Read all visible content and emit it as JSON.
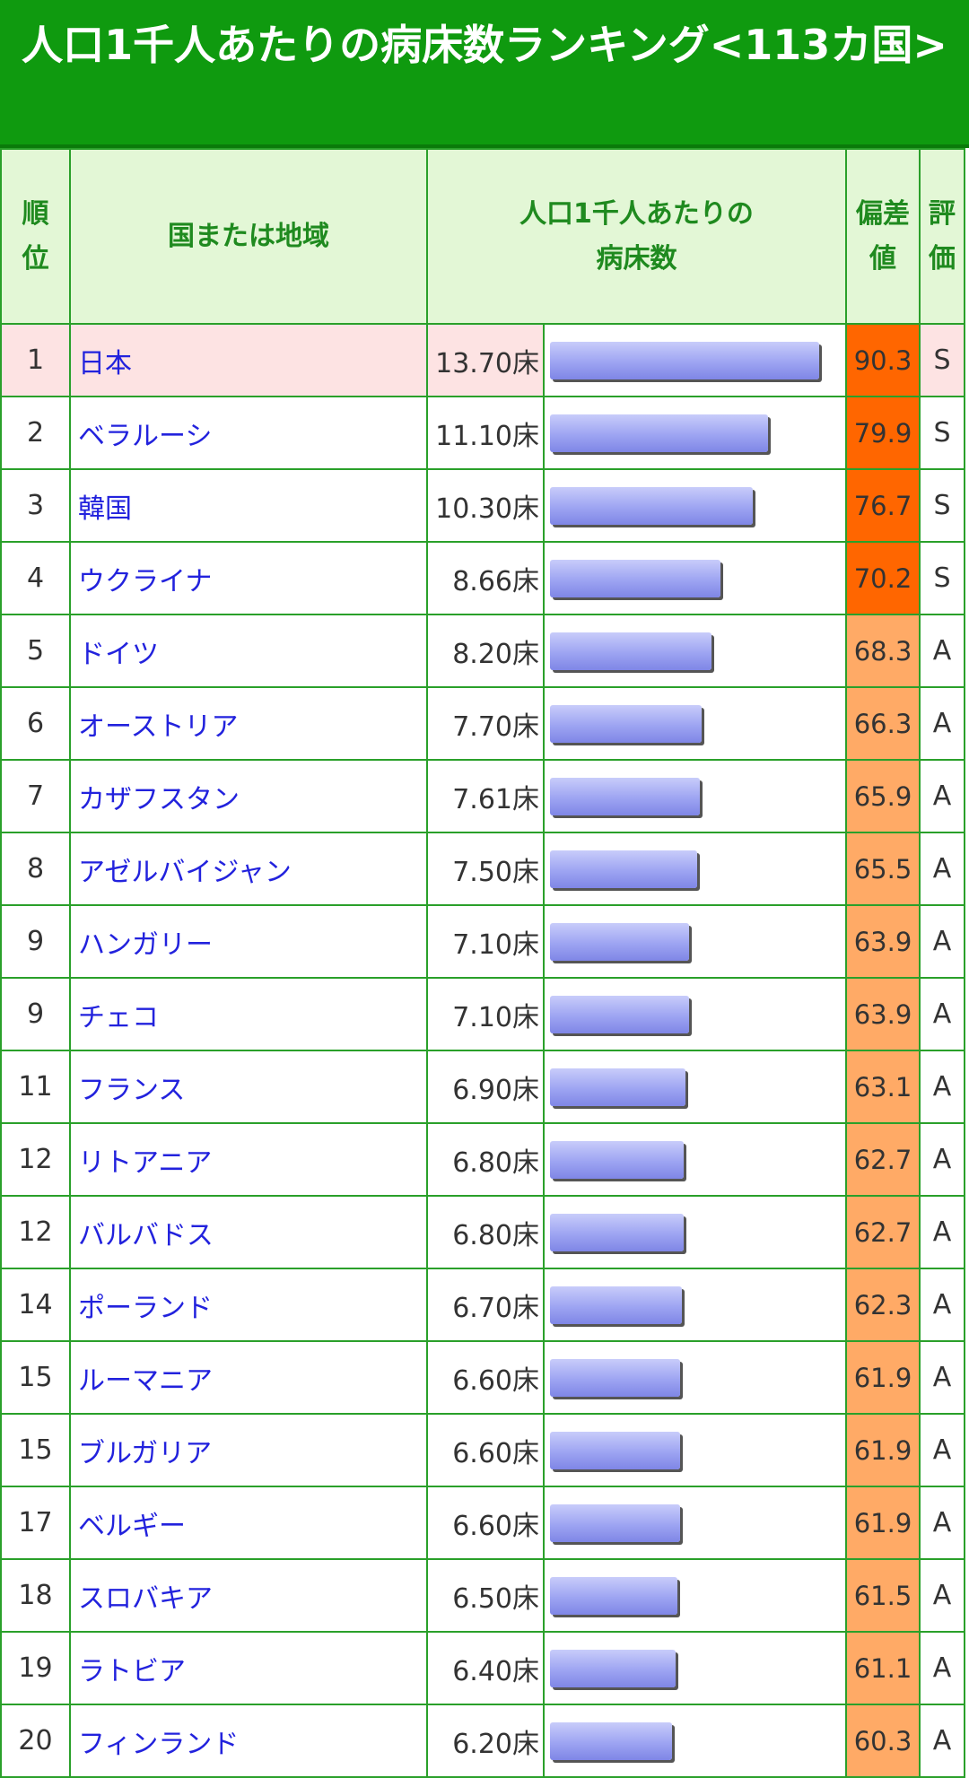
{
  "header": {
    "title": "人口1千人あたりの病床数ランキング<113カ国>"
  },
  "columns": {
    "rank": "順位",
    "country": "国または地域",
    "beds_line1": "人口1千人あたりの",
    "beds_line2": "病床数",
    "deviation": "偏差値",
    "grade": "評価"
  },
  "rows": [
    {
      "rank": 1,
      "country": "日本",
      "beds": 13.7,
      "beds_label": "13.70床",
      "deviation": 90.3,
      "grade": "S"
    },
    {
      "rank": 2,
      "country": "ベラルーシ",
      "beds": 11.1,
      "beds_label": "11.10床",
      "deviation": 79.9,
      "grade": "S"
    },
    {
      "rank": 3,
      "country": "韓国",
      "beds": 10.3,
      "beds_label": "10.30床",
      "deviation": 76.7,
      "grade": "S"
    },
    {
      "rank": 4,
      "country": "ウクライナ",
      "beds": 8.66,
      "beds_label": "8.66床",
      "deviation": 70.2,
      "grade": "S"
    },
    {
      "rank": 5,
      "country": "ドイツ",
      "beds": 8.2,
      "beds_label": "8.20床",
      "deviation": 68.3,
      "grade": "A"
    },
    {
      "rank": 6,
      "country": "オーストリア",
      "beds": 7.7,
      "beds_label": "7.70床",
      "deviation": 66.3,
      "grade": "A"
    },
    {
      "rank": 7,
      "country": "カザフスタン",
      "beds": 7.61,
      "beds_label": "7.61床",
      "deviation": 65.9,
      "grade": "A"
    },
    {
      "rank": 8,
      "country": "アゼルバイジャン",
      "beds": 7.5,
      "beds_label": "7.50床",
      "deviation": 65.5,
      "grade": "A"
    },
    {
      "rank": 9,
      "country": "ハンガリー",
      "beds": 7.1,
      "beds_label": "7.10床",
      "deviation": 63.9,
      "grade": "A"
    },
    {
      "rank": 9,
      "country": "チェコ",
      "beds": 7.1,
      "beds_label": "7.10床",
      "deviation": 63.9,
      "grade": "A"
    },
    {
      "rank": 11,
      "country": "フランス",
      "beds": 6.9,
      "beds_label": "6.90床",
      "deviation": 63.1,
      "grade": "A"
    },
    {
      "rank": 12,
      "country": "リトアニア",
      "beds": 6.8,
      "beds_label": "6.80床",
      "deviation": 62.7,
      "grade": "A"
    },
    {
      "rank": 12,
      "country": "バルバドス",
      "beds": 6.8,
      "beds_label": "6.80床",
      "deviation": 62.7,
      "grade": "A"
    },
    {
      "rank": 14,
      "country": "ポーランド",
      "beds": 6.7,
      "beds_label": "6.70床",
      "deviation": 62.3,
      "grade": "A"
    },
    {
      "rank": 15,
      "country": "ルーマニア",
      "beds": 6.6,
      "beds_label": "6.60床",
      "deviation": 61.9,
      "grade": "A"
    },
    {
      "rank": 15,
      "country": "ブルガリア",
      "beds": 6.6,
      "beds_label": "6.60床",
      "deviation": 61.9,
      "grade": "A"
    },
    {
      "rank": 17,
      "country": "ベルギー",
      "beds": 6.6,
      "beds_label": "6.60床",
      "deviation": 61.9,
      "grade": "A"
    },
    {
      "rank": 18,
      "country": "スロバキア",
      "beds": 6.5,
      "beds_label": "6.50床",
      "deviation": 61.5,
      "grade": "A"
    },
    {
      "rank": 19,
      "country": "ラトビア",
      "beds": 6.4,
      "beds_label": "6.40床",
      "deviation": 61.1,
      "grade": "A"
    },
    {
      "rank": 20,
      "country": "フィンランド",
      "beds": 6.2,
      "beds_label": "6.20床",
      "deviation": 60.3,
      "grade": "A"
    }
  ]
}
